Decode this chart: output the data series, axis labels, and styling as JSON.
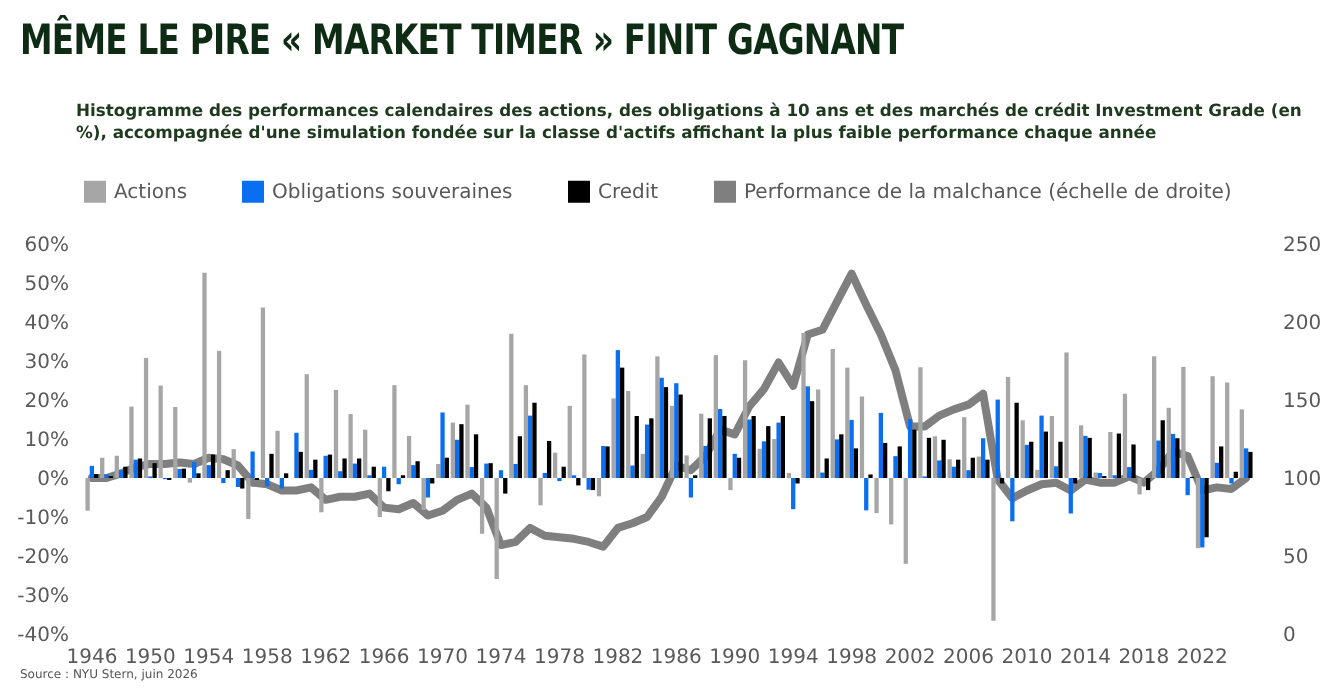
{
  "chart_data": {
    "type": "bar",
    "title": "MÊME LE PIRE « MARKET TIMER » FINIT GAGNANT",
    "subtitle": "Histogramme des performances calendaires des actions, des obligations à 10 ans et des marchés de crédit Investment Grade (en %), accompagnée d'une simulation fondée sur la classe d'actifs affichant la plus faible performance chaque année",
    "annotations": [
      "Source : NYU Stern, juin 2026"
    ],
    "categories": [
      "1946",
      null,
      null,
      null,
      "1950",
      null,
      null,
      null,
      "1954",
      null,
      null,
      null,
      "1958",
      null,
      null,
      null,
      "1962",
      null,
      null,
      null,
      "1966",
      null,
      null,
      null,
      "1970",
      null,
      null,
      null,
      "1974",
      null,
      null,
      null,
      "1978",
      null,
      null,
      null,
      "1982",
      null,
      null,
      null,
      "1986",
      null,
      null,
      null,
      "1990",
      null,
      null,
      null,
      "1994",
      null,
      null,
      null,
      "1998",
      null,
      null,
      null,
      "2002",
      null,
      null,
      null,
      "2006",
      null,
      null,
      null,
      "2010",
      null,
      null,
      null,
      "2014",
      null,
      null,
      null,
      "2018",
      null,
      null,
      null,
      "2022",
      null,
      null,
      null
    ],
    "series": [
      {
        "name": "Actions",
        "color": "#a6a6a6",
        "values": [
          -8.4,
          5.2,
          5.7,
          18.3,
          30.8,
          23.7,
          18.2,
          -1.2,
          52.6,
          32.6,
          7.4,
          -10.5,
          43.7,
          12.1,
          null,
          26.6,
          -8.8,
          22.6,
          16.4,
          12.4,
          -10.0,
          23.8,
          10.8,
          -8.2,
          3.6,
          14.2,
          18.8,
          -14.3,
          -25.9,
          37.0,
          23.8,
          -7.0,
          6.5,
          18.5,
          31.7,
          -4.7,
          20.4,
          22.3,
          6.2,
          31.2,
          18.5,
          5.8,
          16.5,
          31.5,
          -3.1,
          30.2,
          7.5,
          10.0,
          1.3,
          37.2,
          22.7,
          33.1,
          28.3,
          20.9,
          -9.0,
          -11.9,
          -22.0,
          28.4,
          10.7,
          4.8,
          15.6,
          5.5,
          -36.6,
          25.9,
          14.8,
          2.1,
          15.9,
          32.2,
          13.5,
          1.4,
          11.8,
          21.6,
          -4.2,
          31.2,
          18.0,
          28.5,
          -18.0,
          26.1,
          24.5,
          17.6
        ]
      },
      {
        "name": "Obligations souveraines",
        "color": "#0a6ef0",
        "values": [
          3.1,
          0.9,
          2.0,
          4.7,
          0.4,
          -0.3,
          2.3,
          4.1,
          3.3,
          -1.3,
          -2.3,
          6.8,
          -2.1,
          -2.7,
          11.6,
          2.1,
          5.7,
          1.7,
          3.7,
          0.7,
          2.9,
          -1.6,
          3.3,
          -5.0,
          16.8,
          9.8,
          2.8,
          3.7,
          2.0,
          3.6,
          16.0,
          1.3,
          -0.8,
          0.7,
          -3.0,
          8.2,
          32.8,
          3.2,
          13.7,
          25.7,
          24.3,
          -5.0,
          8.2,
          17.7,
          6.2,
          15.0,
          9.4,
          14.2,
          -8.0,
          23.5,
          1.4,
          9.9,
          14.9,
          -8.3,
          16.7,
          5.6,
          15.1,
          0.4,
          4.5,
          2.9,
          2.0,
          10.2,
          20.1,
          -11.1,
          8.5,
          16.0,
          3.0,
          -9.1,
          10.8,
          1.3,
          0.7,
          2.8,
          0.0,
          9.6,
          11.3,
          -4.4,
          -17.8,
          3.9,
          -1.4,
          7.6
        ]
      },
      {
        "name": "Credit",
        "color": "#000000",
        "values": [
          1.0,
          0.5,
          2.9,
          5.0,
          3.8,
          -0.5,
          2.4,
          1.2,
          6.0,
          2.0,
          -2.7,
          -0.5,
          6.2,
          1.2,
          6.7,
          4.7,
          6.0,
          5.0,
          5.0,
          2.9,
          -3.4,
          0.7,
          4.3,
          -1.4,
          5.2,
          13.8,
          11.2,
          3.8,
          -4.0,
          10.7,
          19.3,
          9.5,
          2.9,
          -1.9,
          -3.1,
          8.1,
          28.3,
          15.9,
          15.3,
          23.3,
          21.4,
          0.7,
          15.3,
          15.9,
          5.2,
          15.9,
          13.3,
          15.9,
          -1.4,
          19.7,
          5.0,
          11.2,
          7.6,
          0.9,
          9.0,
          8.1,
          12.4,
          10.3,
          9.8,
          4.7,
          5.2,
          4.7,
          -1.4,
          19.3,
          9.3,
          11.9,
          9.3,
          -1.4,
          10.3,
          0.5,
          11.4,
          8.6,
          -3.1,
          14.8,
          10.2,
          0.3,
          -15.2,
          8.1,
          1.6,
          6.7
        ]
      },
      {
        "name": "Performance de la malchance (échelle de droite)",
        "type": "line",
        "axis": "y2",
        "color": "#7f7f7f",
        "values": [
          100,
          100,
          103,
          107,
          109,
          109,
          110,
          109,
          113,
          112,
          108,
          97,
          96,
          92,
          92,
          94,
          86,
          88,
          88,
          90,
          81,
          80,
          84,
          76,
          79,
          86,
          90,
          81,
          57,
          59,
          68,
          63,
          62,
          61,
          59,
          56,
          68,
          71,
          75,
          88,
          108,
          105,
          114,
          131,
          128,
          146,
          157,
          174,
          159,
          192,
          195,
          213,
          231,
          211,
          192,
          169,
          133,
          133,
          140,
          144,
          147,
          154,
          99,
          87,
          92,
          96,
          97,
          92,
          99,
          97,
          97,
          101,
          97,
          105,
          117,
          114,
          92,
          94,
          93,
          100
        ]
      }
    ],
    "ylim": [
      -40,
      60
    ],
    "yticks": [
      {
        "value": -40,
        "label": "-40%"
      },
      {
        "value": -30,
        "label": "-30%"
      },
      {
        "value": -20,
        "label": "-20%"
      },
      {
        "value": -10,
        "label": "-10%"
      },
      {
        "value": 0,
        "label": "0%"
      },
      {
        "value": 10,
        "label": "10%"
      },
      {
        "value": 20,
        "label": "20%"
      },
      {
        "value": 30,
        "label": "30%"
      },
      {
        "value": 40,
        "label": "40%"
      },
      {
        "value": 50,
        "label": "50%"
      },
      {
        "value": 60,
        "label": "60%"
      }
    ],
    "y2lim": [
      0,
      250
    ],
    "y2ticks": [
      0,
      50,
      100,
      150,
      200,
      250
    ],
    "legend": "top"
  }
}
